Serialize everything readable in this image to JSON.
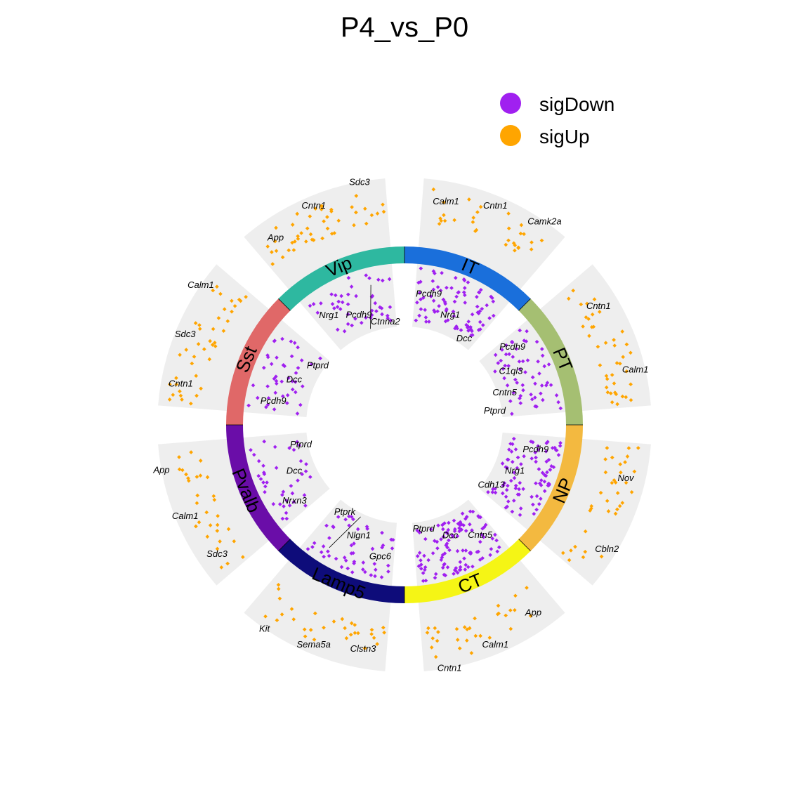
{
  "chart_data": {
    "type": "scatter",
    "title": "P4_vs_P0",
    "legend": {
      "placement": "top-right",
      "entries": [
        {
          "name": "sigDown",
          "color": "#A020F0"
        },
        {
          "name": "sigUp",
          "color": "#FFA500"
        }
      ]
    },
    "panel_color": "#EEEEEE",
    "segments": [
      {
        "name": "IT",
        "color": "#1A6FDB",
        "down_dots": 85,
        "up_dots": 30,
        "up_genes": [
          "Calm1",
          "Cntn1",
          "Camk2a"
        ],
        "down_genes": [
          "Pcdh9",
          "Nrg1",
          "Dcc"
        ]
      },
      {
        "name": "PT",
        "color": "#A5BF72",
        "down_dots": 60,
        "up_dots": 40,
        "up_genes": [
          "Cntn1",
          "Calm1"
        ],
        "down_genes": [
          "Pcdh9",
          "C1ql3",
          "Cntn5",
          "Ptprd"
        ]
      },
      {
        "name": "NP",
        "color": "#F3B940",
        "down_dots": 90,
        "up_dots": 35,
        "up_genes": [
          "Nov",
          "Cbln2"
        ],
        "down_genes": [
          "Pcdh9",
          "Nrg1",
          "Cdh13"
        ]
      },
      {
        "name": "CT",
        "color": "#F5F515",
        "down_dots": 110,
        "up_dots": 30,
        "up_genes": [
          "App",
          "Calm1",
          "Cntn1"
        ],
        "down_genes": [
          "Cntn5",
          "Dcc",
          "Ptprd"
        ]
      },
      {
        "name": "Lamp5",
        "color": "#0E0C7A",
        "down_dots": 50,
        "up_dots": 30,
        "up_genes": [
          "Clstn3",
          "Sema5a",
          "Kit"
        ],
        "down_genes": [
          "Gpc6",
          "Nlgn1",
          "Ptprk"
        ]
      },
      {
        "name": "Pvalb",
        "color": "#6A0DA8",
        "down_dots": 40,
        "up_dots": 30,
        "up_genes": [
          "Sdc3",
          "Calm1",
          "App"
        ],
        "down_genes": [
          "Nrxn3",
          "Dcc",
          "Ptprd"
        ]
      },
      {
        "name": "Sst",
        "color": "#E06868",
        "down_dots": 45,
        "up_dots": 40,
        "up_genes": [
          "Cntn1",
          "Sdc3",
          "Calm1"
        ],
        "down_genes": [
          "Pcdh9",
          "Dcc",
          "Ptprd"
        ]
      },
      {
        "name": "Vip",
        "color": "#2EB8A0",
        "down_dots": 45,
        "up_dots": 45,
        "up_genes": [
          "App",
          "Cntn1",
          "Sdc3"
        ],
        "down_genes": [
          "Nrg1",
          "Pcdh9",
          "Ctnna2"
        ]
      }
    ]
  }
}
